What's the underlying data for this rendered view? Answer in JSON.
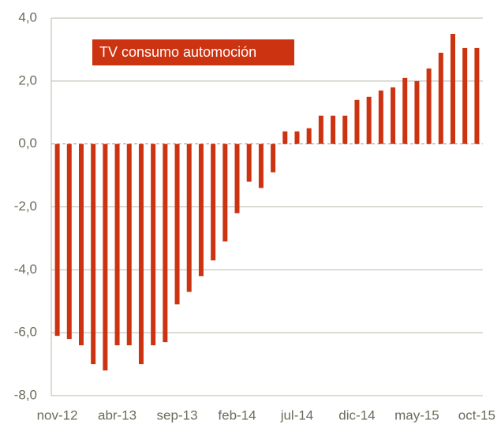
{
  "chart_data": {
    "type": "bar",
    "categories": [
      "nov-12",
      null,
      null,
      null,
      null,
      "abr-13",
      null,
      null,
      null,
      null,
      "sep-13",
      null,
      null,
      null,
      null,
      "feb-14",
      null,
      null,
      null,
      null,
      "jul-14",
      null,
      null,
      null,
      null,
      "dic-14",
      null,
      null,
      null,
      null,
      "may-15",
      null,
      null,
      null,
      null,
      "oct-15"
    ],
    "series": [
      {
        "name": "TV consumo automoción",
        "color": "#cc3311",
        "values": [
          -6.1,
          -6.2,
          -6.4,
          -7.0,
          -7.2,
          -6.4,
          -6.4,
          -7.0,
          -6.4,
          -6.3,
          -5.1,
          -4.7,
          -4.2,
          -3.7,
          -3.1,
          -2.2,
          -1.2,
          -1.4,
          -0.9,
          0.4,
          0.4,
          0.5,
          0.9,
          0.9,
          0.9,
          1.4,
          1.5,
          1.7,
          1.8,
          2.1,
          2.0,
          2.4,
          2.9,
          3.5,
          3.05,
          3.05
        ]
      }
    ],
    "ylim": [
      -8,
      4
    ],
    "yticks": [
      {
        "value": -8,
        "label": "-8,0"
      },
      {
        "value": -6,
        "label": "-6,0"
      },
      {
        "value": -4,
        "label": "-4,0"
      },
      {
        "value": -2,
        "label": "-2,0"
      },
      {
        "value": 0,
        "label": "0,0"
      },
      {
        "value": 2,
        "label": "2,0"
      },
      {
        "value": 4,
        "label": "4,0"
      }
    ],
    "grid": true
  }
}
